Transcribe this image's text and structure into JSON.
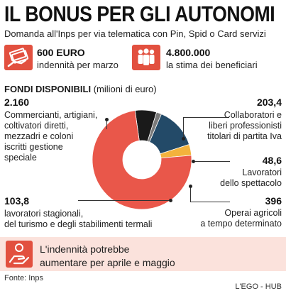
{
  "header": {
    "title": "IL BONUS PER GLI AUTONOMI",
    "subtitle": "Domanda all'Inps per via telematica con Pin, Spid o Card servizi"
  },
  "stats": [
    {
      "value": "600 EURO",
      "label": "indennità per marzo",
      "icon": "money-hand-icon"
    },
    {
      "value": "4.800.000",
      "label": "la stima dei beneficiari",
      "icon": "people-group-icon"
    }
  ],
  "section": {
    "title_bold": "FONDI DISPONIBILI",
    "title_unit": "(milioni di euro)"
  },
  "chart_data": {
    "type": "pie",
    "donut": true,
    "title": "FONDI DISPONIBILI",
    "unit": "milioni di euro",
    "slices": [
      {
        "value": 2160,
        "value_label": "2.160",
        "label": "Commercianti, artigiani, coltivatori diretti, mezzadri e coloni iscritti gestione speciale",
        "color": "#e9574a"
      },
      {
        "value": 203.4,
        "value_label": "203,4",
        "label": "Collaboratori e liberi professionisti titolari di partita Iva",
        "color": "#1a1a1a"
      },
      {
        "value": 48.6,
        "value_label": "48,6",
        "label": "Lavoratori dello spettacolo",
        "color": "#7a7a7a"
      },
      {
        "value": 396,
        "value_label": "396",
        "label": "Operai agricoli a tempo determinato",
        "color": "#234a68"
      },
      {
        "value": 103.8,
        "value_label": "103,8",
        "label": "lavoratori stagionali, del turismo e degli stabilimenti termali",
        "color": "#f3b33d"
      }
    ]
  },
  "labels": {
    "commercianti": {
      "value": "2.160",
      "lines": [
        "Commercianti, artigiani,",
        "coltivatori diretti,",
        "mezzadri e coloni",
        "iscritti gestione",
        "speciale"
      ]
    },
    "collaboratori": {
      "value": "203,4",
      "lines": [
        "Collaboratori e",
        "liberi professionisti",
        "titolari di partita Iva"
      ]
    },
    "spettacolo": {
      "value": "48,6",
      "lines": [
        "Lavoratori",
        "dello spettacolo"
      ]
    },
    "agricoli": {
      "value": "396",
      "lines": [
        "Operai agricoli",
        "a tempo determinato"
      ]
    },
    "stagionali": {
      "value": "103,8",
      "lines": [
        "lavoratori stagionali,",
        "del turismo e degli stabilimenti termali"
      ]
    }
  },
  "note": {
    "line1": "L'indennità potrebbe",
    "line2": "aumentare per aprile e maggio",
    "icon": "hand-coin-icon"
  },
  "footer": {
    "source": "Fonte: Inps",
    "credit": "L'EGO - HUB"
  },
  "colors": {
    "accent": "#e2503f",
    "note_background": "#fbe2dc"
  }
}
